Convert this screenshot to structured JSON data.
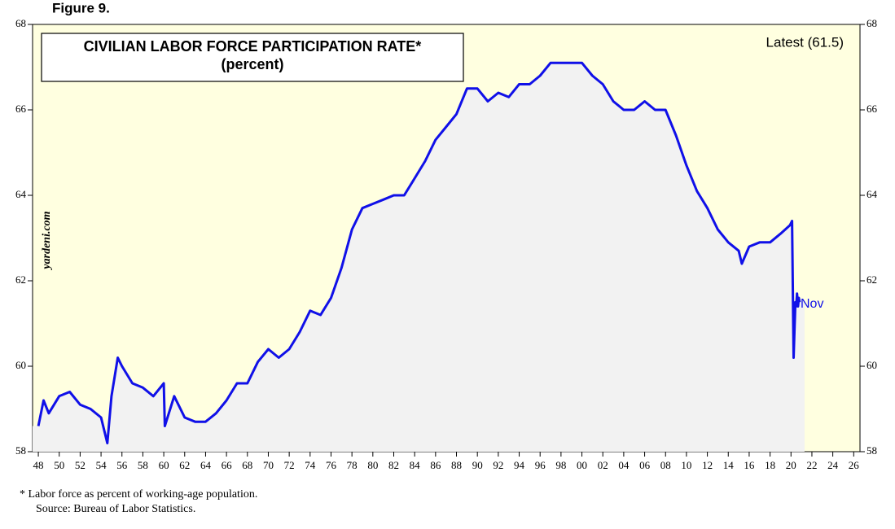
{
  "chart_data": {
    "type": "line",
    "figure_label": "Figure 9.",
    "title": "CIVILIAN LABOR FORCE PARTICIPATION RATE*",
    "subtitle": "(percent)",
    "annotations": [
      "Latest (61.5)",
      "Nov"
    ],
    "watermark": "yardeni.com",
    "footnotes": [
      "*  Labor force as percent of working-age population.",
      "Source: Bureau of Labor Statistics."
    ],
    "x": [
      1948,
      1948.5,
      1949,
      1950,
      1951,
      1952,
      1953,
      1954,
      1954.6,
      1955,
      1955.6,
      1956,
      1957,
      1958,
      1959,
      1960,
      1960.1,
      1961,
      1962,
      1963,
      1964,
      1965,
      1966,
      1967,
      1968,
      1969,
      1970,
      1971,
      1972,
      1973,
      1974,
      1975,
      1976,
      1977,
      1978,
      1979,
      1980,
      1981,
      1982,
      1983,
      1984,
      1985,
      1986,
      1987,
      1988,
      1989,
      1990,
      1991,
      1992,
      1993,
      1994,
      1995,
      1996,
      1997,
      1998,
      1999,
      2000,
      2001,
      2002,
      2003,
      2004,
      2005,
      2006,
      2007,
      2008,
      2009,
      2010,
      2011,
      2012,
      2013,
      2014,
      2015,
      2015.3,
      2016,
      2017,
      2018,
      2019,
      2019.9,
      2020.1,
      2020.25,
      2020.33,
      2020.42,
      2020.5,
      2020.58,
      2020.67,
      2020.75,
      2020.83
    ],
    "series": [
      {
        "name": "Participation rate",
        "color": "#1010e8",
        "values": [
          58.6,
          59.2,
          58.9,
          59.3,
          59.4,
          59.1,
          59.0,
          58.8,
          58.2,
          59.3,
          60.2,
          60.0,
          59.6,
          59.5,
          59.3,
          59.6,
          58.6,
          59.3,
          58.8,
          58.7,
          58.7,
          58.9,
          59.2,
          59.6,
          59.6,
          60.1,
          60.4,
          60.2,
          60.4,
          60.8,
          61.3,
          61.2,
          61.6,
          62.3,
          63.2,
          63.7,
          63.8,
          63.9,
          64.0,
          64.0,
          64.4,
          64.8,
          65.3,
          65.6,
          65.9,
          66.5,
          66.5,
          66.2,
          66.4,
          66.3,
          66.6,
          66.6,
          66.8,
          67.1,
          67.1,
          67.1,
          67.1,
          66.8,
          66.6,
          66.2,
          66.0,
          66.0,
          66.2,
          66.0,
          66.0,
          65.4,
          64.7,
          64.1,
          63.7,
          63.2,
          62.9,
          62.7,
          62.4,
          62.8,
          62.9,
          62.9,
          63.1,
          63.3,
          63.4,
          60.2,
          60.8,
          61.5,
          61.4,
          61.7,
          61.4,
          61.6,
          61.5
        ]
      }
    ],
    "xlim": [
      1947.45,
      2026.6
    ],
    "ylim": [
      58,
      68
    ],
    "yticks": [
      58,
      60,
      62,
      64,
      66,
      68
    ],
    "xticks": [
      {
        "value": 1948,
        "label": "48"
      },
      {
        "value": 1950,
        "label": "50"
      },
      {
        "value": 1952,
        "label": "52"
      },
      {
        "value": 1954,
        "label": "54"
      },
      {
        "value": 1956,
        "label": "56"
      },
      {
        "value": 1958,
        "label": "58"
      },
      {
        "value": 1960,
        "label": "60"
      },
      {
        "value": 1962,
        "label": "62"
      },
      {
        "value": 1964,
        "label": "64"
      },
      {
        "value": 1966,
        "label": "66"
      },
      {
        "value": 1968,
        "label": "68"
      },
      {
        "value": 1970,
        "label": "70"
      },
      {
        "value": 1972,
        "label": "72"
      },
      {
        "value": 1974,
        "label": "74"
      },
      {
        "value": 1976,
        "label": "76"
      },
      {
        "value": 1978,
        "label": "78"
      },
      {
        "value": 1980,
        "label": "80"
      },
      {
        "value": 1982,
        "label": "82"
      },
      {
        "value": 1984,
        "label": "84"
      },
      {
        "value": 1986,
        "label": "86"
      },
      {
        "value": 1988,
        "label": "88"
      },
      {
        "value": 1990,
        "label": "90"
      },
      {
        "value": 1992,
        "label": "92"
      },
      {
        "value": 1994,
        "label": "94"
      },
      {
        "value": 1996,
        "label": "96"
      },
      {
        "value": 1998,
        "label": "98"
      },
      {
        "value": 2000,
        "label": "00"
      },
      {
        "value": 2002,
        "label": "02"
      },
      {
        "value": 2004,
        "label": "04"
      },
      {
        "value": 2006,
        "label": "06"
      },
      {
        "value": 2008,
        "label": "08"
      },
      {
        "value": 2010,
        "label": "10"
      },
      {
        "value": 2012,
        "label": "12"
      },
      {
        "value": 2014,
        "label": "14"
      },
      {
        "value": 2016,
        "label": "16"
      },
      {
        "value": 2018,
        "label": "18"
      },
      {
        "value": 2020,
        "label": "20"
      },
      {
        "value": 2022,
        "label": "22"
      },
      {
        "value": 2024,
        "label": "24"
      },
      {
        "value": 2026,
        "label": "26"
      }
    ],
    "grid": false
  }
}
